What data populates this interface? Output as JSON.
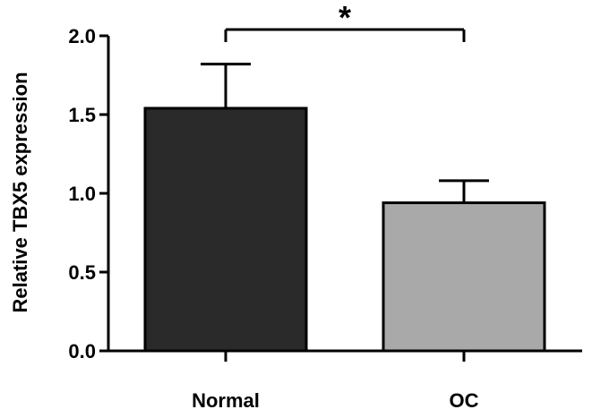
{
  "chart_data": {
    "type": "bar",
    "categories": [
      "Normal",
      "OC"
    ],
    "values": [
      1.54,
      0.94
    ],
    "errors": [
      0.28,
      0.14
    ],
    "bar_colors": [
      "#2a2a2a",
      "#a9a9a9"
    ],
    "ylabel": "Relative TBX5 expression",
    "xlabel": "",
    "ylim": [
      0,
      2.0
    ],
    "yticks": [
      "0.0",
      "0.5",
      "1.0",
      "1.5",
      "2.0"
    ],
    "grid": false,
    "significance": {
      "label": "*",
      "between": [
        "Normal",
        "OC"
      ]
    }
  }
}
